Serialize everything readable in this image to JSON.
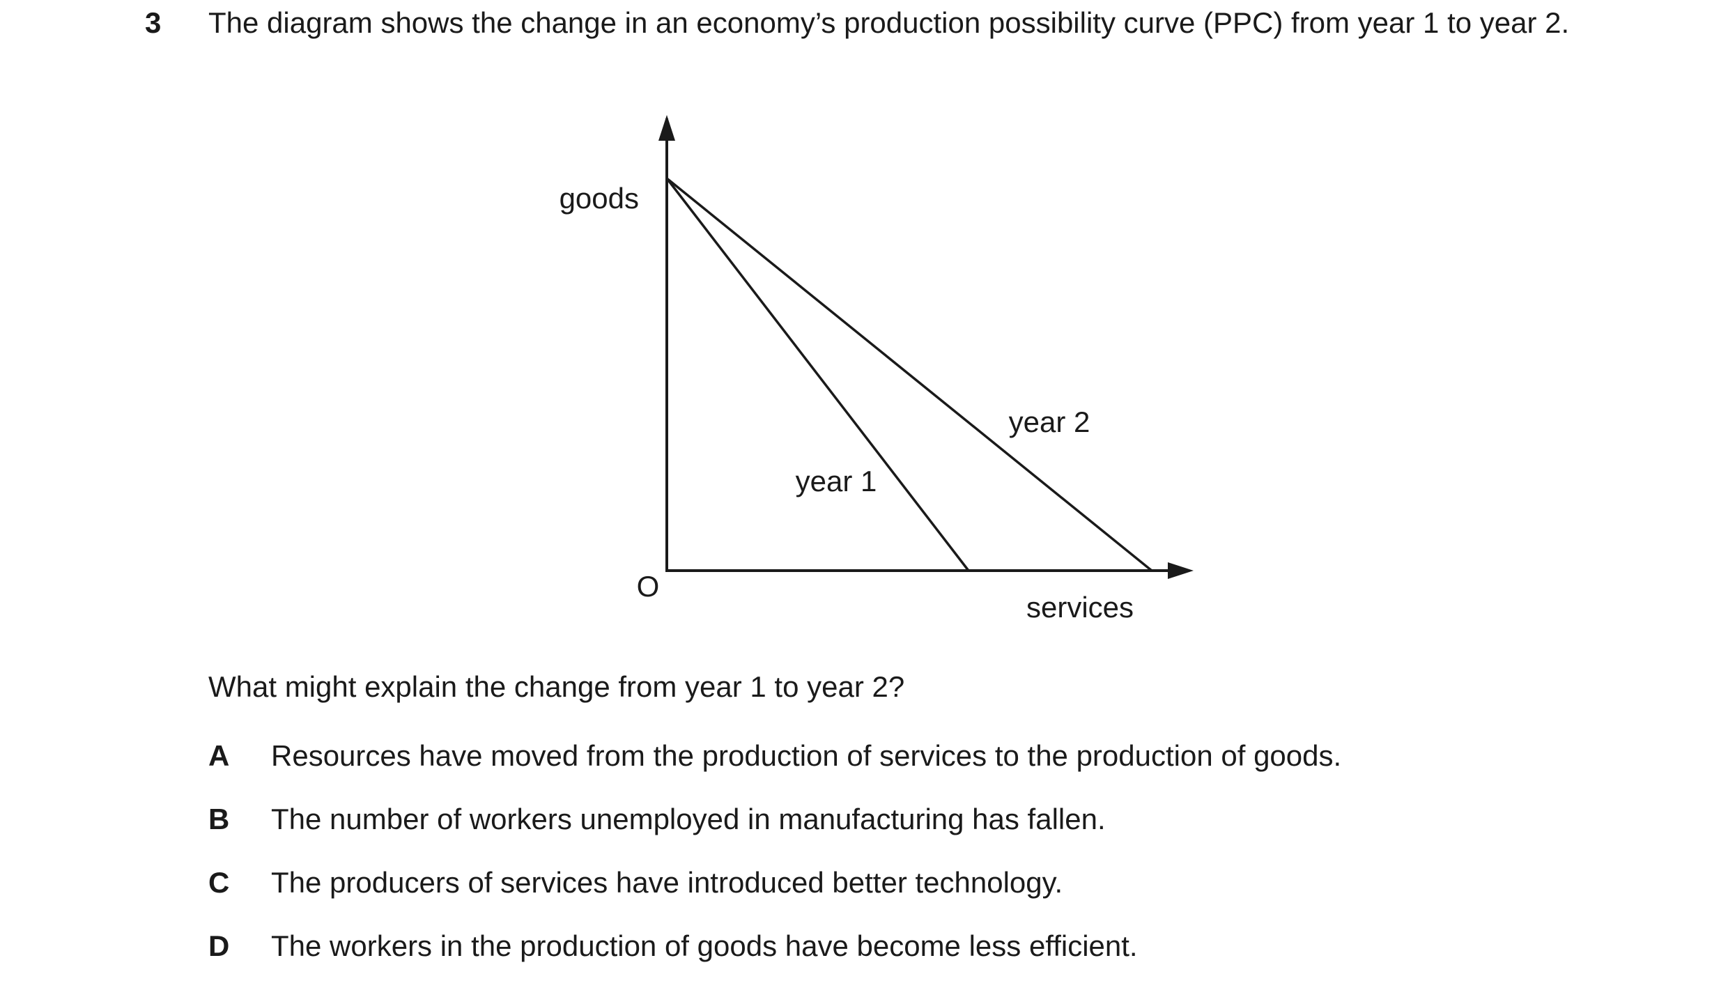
{
  "question": {
    "number": "3",
    "text": "The diagram shows the change in an economy’s production possibility curve (PPC) from year 1 to year 2.",
    "prompt": "What might explain the change from year 1 to year 2?"
  },
  "diagram": {
    "y_axis_label": "goods",
    "x_axis_label": "services",
    "origin_label": "O",
    "curve_labels": [
      "year 1",
      "year 2"
    ]
  },
  "options": [
    {
      "letter": "A",
      "text": "Resources have moved from the production of services to the production of goods."
    },
    {
      "letter": "B",
      "text": "The number of workers unemployed in manufacturing has fallen."
    },
    {
      "letter": "C",
      "text": "The producers of services have introduced better technology."
    },
    {
      "letter": "D",
      "text": "The workers in the production of goods have become less efficient."
    }
  ]
}
